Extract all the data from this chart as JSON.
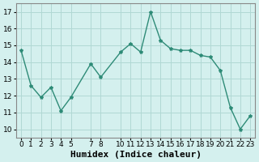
{
  "xlabel": "Humidex (Indice chaleur)",
  "x": [
    0,
    1,
    2,
    3,
    4,
    5,
    7,
    8,
    10,
    11,
    12,
    13,
    14,
    15,
    16,
    17,
    18,
    19,
    20,
    21,
    22,
    23
  ],
  "y": [
    14.7,
    12.6,
    11.9,
    12.5,
    11.1,
    11.9,
    13.9,
    13.1,
    14.6,
    15.1,
    14.6,
    17.0,
    15.3,
    14.8,
    14.7,
    14.7,
    14.4,
    14.3,
    13.5,
    11.3,
    10.0,
    10.8
  ],
  "ylim": [
    9.5,
    17.5
  ],
  "xlim": [
    -0.5,
    23.5
  ],
  "yticks": [
    10,
    11,
    12,
    13,
    14,
    15,
    16,
    17
  ],
  "xticks": [
    0,
    1,
    2,
    3,
    4,
    5,
    7,
    8,
    10,
    11,
    12,
    13,
    14,
    15,
    16,
    17,
    18,
    19,
    20,
    21,
    22,
    23
  ],
  "line_color": "#2e8b77",
  "marker": "*",
  "bg_color": "#d4f0ee",
  "grid_color": "#b0d8d4",
  "tick_label_fontsize": 6.5,
  "xlabel_fontsize": 8,
  "title_fontsize": 8
}
